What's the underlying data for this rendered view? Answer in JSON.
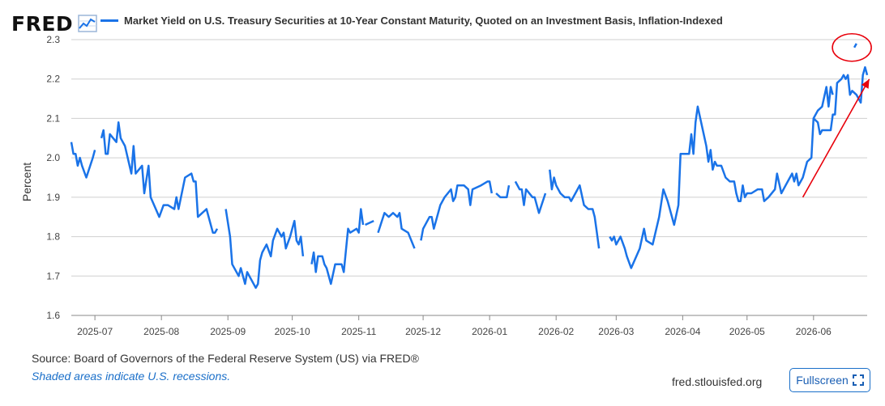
{
  "logo": {
    "text": "FRED",
    "icon": "line-chart-icon"
  },
  "legend": {
    "series_label": "Market Yield on U.S. Treasury Securities at 10-Year Constant Maturity, Quoted on an Investment Basis, Inflation-Indexed",
    "color": "#1a73e8"
  },
  "footer": {
    "source": "Source: Board of Governors of the Federal Reserve System (US) via FRED®",
    "recession_note": "Shaded areas indicate U.S. recessions.",
    "url": "fred.stlouisfed.org",
    "fullscreen_label": "Fullscreen",
    "fullscreen_icon": "expand-icon"
  },
  "chart_data": {
    "type": "line",
    "title": "",
    "xlabel": "",
    "ylabel": "Percent",
    "ylim": [
      1.6,
      2.3
    ],
    "yticks": [
      1.6,
      1.7,
      1.8,
      1.9,
      2.0,
      2.1,
      2.2,
      2.3
    ],
    "ytick_labels": [
      "1.6",
      "1.7",
      "1.8",
      "1.9",
      "2.0",
      "2.1",
      "2.2",
      "2.3"
    ],
    "xlim": [
      "2025-06-20",
      "2026-06-26"
    ],
    "xticks": [
      "2025-07-01",
      "2025-08-01",
      "2025-09-01",
      "2025-10-01",
      "2025-11-01",
      "2025-12-01",
      "2026-01-01",
      "2026-02-01",
      "2026-03-01",
      "2026-04-01",
      "2026-05-01",
      "2026-06-01"
    ],
    "xtick_labels": [
      "2025-07",
      "2025-08",
      "2025-09",
      "2025-10",
      "2025-11",
      "2025-12",
      "2026-01",
      "2026-02",
      "2026-03",
      "2026-04",
      "2026-05",
      "2026-06"
    ],
    "grid": true,
    "legend_position": "top",
    "annotations": [
      {
        "type": "circle",
        "x": "2026-06-20",
        "y": 2.28,
        "color": "#e8000b"
      },
      {
        "type": "arrow",
        "from": [
          "2026-05-27",
          1.9
        ],
        "to": [
          "2026-06-27",
          2.2
        ],
        "color": "#e8000b"
      }
    ],
    "series": [
      {
        "color": "#1a73e8",
        "segments": [
          [
            [
              "2025-06-20",
              2.04
            ],
            [
              "2025-06-21",
              2.01
            ],
            [
              "2025-06-22",
              2.01
            ],
            [
              "2025-06-23",
              1.98
            ],
            [
              "2025-06-24",
              2.0
            ],
            [
              "2025-06-25",
              1.98
            ],
            [
              "2025-06-27",
              1.95
            ],
            [
              "2025-06-30",
              2.0
            ],
            [
              "2025-07-01",
              2.02
            ]
          ],
          [
            [
              "2025-07-04",
              2.05
            ],
            [
              "2025-07-05",
              2.07
            ],
            [
              "2025-07-06",
              2.01
            ],
            [
              "2025-07-07",
              2.01
            ],
            [
              "2025-07-08",
              2.06
            ],
            [
              "2025-07-11",
              2.04
            ],
            [
              "2025-07-12",
              2.09
            ],
            [
              "2025-07-13",
              2.05
            ],
            [
              "2025-07-15",
              2.03
            ],
            [
              "2025-07-18",
              1.96
            ],
            [
              "2025-07-19",
              2.03
            ],
            [
              "2025-07-20",
              1.96
            ],
            [
              "2025-07-23",
              1.98
            ],
            [
              "2025-07-24",
              1.91
            ],
            [
              "2025-07-26",
              1.98
            ],
            [
              "2025-07-27",
              1.9
            ],
            [
              "2025-07-31",
              1.85
            ],
            [
              "2025-08-02",
              1.88
            ],
            [
              "2025-08-04",
              1.88
            ],
            [
              "2025-08-07",
              1.87
            ],
            [
              "2025-08-08",
              1.9
            ],
            [
              "2025-08-09",
              1.87
            ],
            [
              "2025-08-12",
              1.95
            ],
            [
              "2025-08-15",
              1.96
            ],
            [
              "2025-08-16",
              1.94
            ],
            [
              "2025-08-17",
              1.94
            ],
            [
              "2025-08-18",
              1.85
            ],
            [
              "2025-08-20",
              1.86
            ],
            [
              "2025-08-22",
              1.87
            ],
            [
              "2025-08-25",
              1.81
            ],
            [
              "2025-08-26",
              1.81
            ],
            [
              "2025-08-27",
              1.82
            ]
          ],
          [
            [
              "2025-08-31",
              1.87
            ],
            [
              "2025-09-02",
              1.8
            ],
            [
              "2025-09-03",
              1.73
            ],
            [
              "2025-09-06",
              1.7
            ],
            [
              "2025-09-07",
              1.72
            ],
            [
              "2025-09-08",
              1.7
            ],
            [
              "2025-09-09",
              1.68
            ],
            [
              "2025-09-10",
              1.71
            ],
            [
              "2025-09-12",
              1.69
            ],
            [
              "2025-09-14",
              1.67
            ],
            [
              "2025-09-15",
              1.68
            ],
            [
              "2025-09-16",
              1.74
            ],
            [
              "2025-09-17",
              1.76
            ],
            [
              "2025-09-19",
              1.78
            ],
            [
              "2025-09-21",
              1.75
            ],
            [
              "2025-09-22",
              1.79
            ],
            [
              "2025-09-24",
              1.82
            ],
            [
              "2025-09-26",
              1.8
            ],
            [
              "2025-09-27",
              1.81
            ],
            [
              "2025-09-28",
              1.77
            ],
            [
              "2025-09-30",
              1.8
            ],
            [
              "2025-10-01",
              1.82
            ],
            [
              "2025-10-02",
              1.84
            ],
            [
              "2025-10-03",
              1.79
            ],
            [
              "2025-10-04",
              1.78
            ],
            [
              "2025-10-05",
              1.8
            ],
            [
              "2025-10-06",
              1.75
            ]
          ],
          [
            [
              "2025-10-10",
              1.73
            ],
            [
              "2025-10-11",
              1.76
            ],
            [
              "2025-10-12",
              1.71
            ],
            [
              "2025-10-13",
              1.75
            ],
            [
              "2025-10-15",
              1.75
            ],
            [
              "2025-10-16",
              1.73
            ],
            [
              "2025-10-17",
              1.72
            ],
            [
              "2025-10-19",
              1.68
            ],
            [
              "2025-10-21",
              1.73
            ],
            [
              "2025-10-24",
              1.73
            ],
            [
              "2025-10-25",
              1.71
            ],
            [
              "2025-10-27",
              1.82
            ],
            [
              "2025-10-28",
              1.81
            ],
            [
              "2025-10-31",
              1.82
            ],
            [
              "2025-11-01",
              1.81
            ],
            [
              "2025-11-02",
              1.87
            ],
            [
              "2025-11-03",
              1.83
            ]
          ],
          [
            [
              "2025-11-04",
              1.83
            ],
            [
              "2025-11-08",
              1.84
            ]
          ],
          [
            [
              "2025-11-10",
              1.81
            ],
            [
              "2025-11-13",
              1.86
            ],
            [
              "2025-11-15",
              1.85
            ],
            [
              "2025-11-17",
              1.86
            ],
            [
              "2025-11-19",
              1.85
            ],
            [
              "2025-11-20",
              1.86
            ],
            [
              "2025-11-21",
              1.82
            ],
            [
              "2025-11-24",
              1.81
            ],
            [
              "2025-11-27",
              1.77
            ]
          ],
          [
            [
              "2025-11-30",
              1.79
            ],
            [
              "2025-12-01",
              1.82
            ],
            [
              "2025-12-04",
              1.85
            ],
            [
              "2025-12-05",
              1.85
            ],
            [
              "2025-12-06",
              1.82
            ],
            [
              "2025-12-09",
              1.88
            ],
            [
              "2025-12-11",
              1.9
            ],
            [
              "2025-12-14",
              1.92
            ],
            [
              "2025-12-15",
              1.89
            ],
            [
              "2025-12-16",
              1.9
            ],
            [
              "2025-12-17",
              1.93
            ],
            [
              "2025-12-20",
              1.93
            ],
            [
              "2025-12-22",
              1.92
            ],
            [
              "2025-12-23",
              1.88
            ],
            [
              "2025-12-24",
              1.92
            ],
            [
              "2025-12-28",
              1.93
            ],
            [
              "2025-12-31",
              1.94
            ],
            [
              "2026-01-01",
              1.94
            ],
            [
              "2026-01-02",
              1.91
            ]
          ],
          [
            [
              "2026-01-04",
              1.91
            ],
            [
              "2026-01-06",
              1.9
            ],
            [
              "2026-01-09",
              1.9
            ],
            [
              "2026-01-10",
              1.93
            ]
          ],
          [
            [
              "2026-01-13",
              1.94
            ],
            [
              "2026-01-15",
              1.92
            ],
            [
              "2026-01-16",
              1.92
            ],
            [
              "2026-01-17",
              1.88
            ],
            [
              "2026-01-18",
              1.92
            ],
            [
              "2026-01-21",
              1.9
            ],
            [
              "2026-01-22",
              1.9
            ],
            [
              "2026-01-24",
              1.86
            ],
            [
              "2026-01-27",
              1.91
            ]
          ],
          [
            [
              "2026-01-29",
              1.97
            ],
            [
              "2026-01-30",
              1.92
            ],
            [
              "2026-01-31",
              1.95
            ],
            [
              "2026-02-01",
              1.93
            ],
            [
              "2026-02-03",
              1.91
            ],
            [
              "2026-02-05",
              1.9
            ],
            [
              "2026-02-07",
              1.9
            ],
            [
              "2026-02-08",
              1.89
            ],
            [
              "2026-02-10",
              1.91
            ],
            [
              "2026-02-12",
              1.93
            ],
            [
              "2026-02-14",
              1.88
            ],
            [
              "2026-02-16",
              1.87
            ],
            [
              "2026-02-18",
              1.87
            ],
            [
              "2026-02-19",
              1.85
            ],
            [
              "2026-02-20",
              1.81
            ],
            [
              "2026-02-21",
              1.77
            ]
          ],
          [
            [
              "2026-02-26",
              1.8
            ],
            [
              "2026-02-27",
              1.79
            ],
            [
              "2026-02-28",
              1.8
            ],
            [
              "2026-03-01",
              1.78
            ],
            [
              "2026-03-03",
              1.8
            ],
            [
              "2026-03-05",
              1.77
            ],
            [
              "2026-03-06",
              1.75
            ],
            [
              "2026-03-08",
              1.72
            ],
            [
              "2026-03-12",
              1.77
            ],
            [
              "2026-03-14",
              1.82
            ],
            [
              "2026-03-15",
              1.79
            ],
            [
              "2026-03-18",
              1.78
            ],
            [
              "2026-03-21",
              1.85
            ],
            [
              "2026-03-23",
              1.92
            ],
            [
              "2026-03-25",
              1.89
            ],
            [
              "2026-03-28",
              1.83
            ],
            [
              "2026-03-30",
              1.88
            ],
            [
              "2026-03-31",
              2.01
            ],
            [
              "2026-04-01",
              2.01
            ],
            [
              "2026-04-04",
              2.01
            ],
            [
              "2026-04-05",
              2.06
            ],
            [
              "2026-04-06",
              2.01
            ],
            [
              "2026-04-07",
              2.09
            ],
            [
              "2026-04-08",
              2.13
            ],
            [
              "2026-04-10",
              2.08
            ],
            [
              "2026-04-12",
              2.03
            ],
            [
              "2026-04-13",
              1.99
            ],
            [
              "2026-04-14",
              2.02
            ],
            [
              "2026-04-15",
              1.97
            ],
            [
              "2026-04-16",
              1.99
            ],
            [
              "2026-04-17",
              1.98
            ],
            [
              "2026-04-19",
              1.98
            ],
            [
              "2026-04-21",
              1.95
            ],
            [
              "2026-04-23",
              1.94
            ],
            [
              "2026-04-25",
              1.94
            ],
            [
              "2026-04-26",
              1.91
            ],
            [
              "2026-04-27",
              1.89
            ],
            [
              "2026-04-28",
              1.89
            ],
            [
              "2026-04-29",
              1.93
            ],
            [
              "2026-04-30",
              1.9
            ],
            [
              "2026-05-01",
              1.91
            ],
            [
              "2026-05-03",
              1.91
            ],
            [
              "2026-05-06",
              1.92
            ],
            [
              "2026-05-08",
              1.92
            ],
            [
              "2026-05-09",
              1.89
            ],
            [
              "2026-05-11",
              1.9
            ],
            [
              "2026-05-14",
              1.92
            ],
            [
              "2026-05-15",
              1.96
            ],
            [
              "2026-05-17",
              1.91
            ],
            [
              "2026-05-19",
              1.93
            ],
            [
              "2026-05-21",
              1.95
            ],
            [
              "2026-05-22",
              1.96
            ],
            [
              "2026-05-23",
              1.94
            ],
            [
              "2026-05-24",
              1.96
            ],
            [
              "2026-05-25",
              1.93
            ],
            [
              "2026-05-27",
              1.95
            ],
            [
              "2026-05-29",
              1.99
            ],
            [
              "2026-05-31",
              2.0
            ],
            [
              "2026-06-01",
              2.1
            ],
            [
              "2026-06-03",
              2.12
            ],
            [
              "2026-06-05",
              2.13
            ],
            [
              "2026-06-07",
              2.18
            ],
            [
              "2026-06-08",
              2.13
            ],
            [
              "2026-06-09",
              2.18
            ],
            [
              "2026-06-10",
              2.16
            ]
          ],
          [
            [
              "2026-06-01",
              2.1
            ],
            [
              "2026-06-03",
              2.09
            ],
            [
              "2026-06-04",
              2.06
            ],
            [
              "2026-06-05",
              2.07
            ],
            [
              "2026-06-07",
              2.07
            ],
            [
              "2026-06-09",
              2.07
            ],
            [
              "2026-06-10",
              2.11
            ],
            [
              "2026-06-11",
              2.11
            ],
            [
              "2026-06-12",
              2.19
            ],
            [
              "2026-06-14",
              2.2
            ],
            [
              "2026-06-15",
              2.21
            ],
            [
              "2026-06-16",
              2.2
            ],
            [
              "2026-06-17",
              2.21
            ],
            [
              "2026-06-18",
              2.16
            ],
            [
              "2026-06-19",
              2.17
            ],
            [
              "2026-06-21",
              2.16
            ],
            [
              "2026-06-23",
              2.14
            ],
            [
              "2026-06-24",
              2.21
            ],
            [
              "2026-06-25",
              2.23
            ],
            [
              "2026-06-26",
              2.21
            ]
          ],
          [
            [
              "2026-06-20",
              2.28
            ],
            [
              "2026-06-21",
              2.29
            ]
          ]
        ]
      }
    ]
  }
}
